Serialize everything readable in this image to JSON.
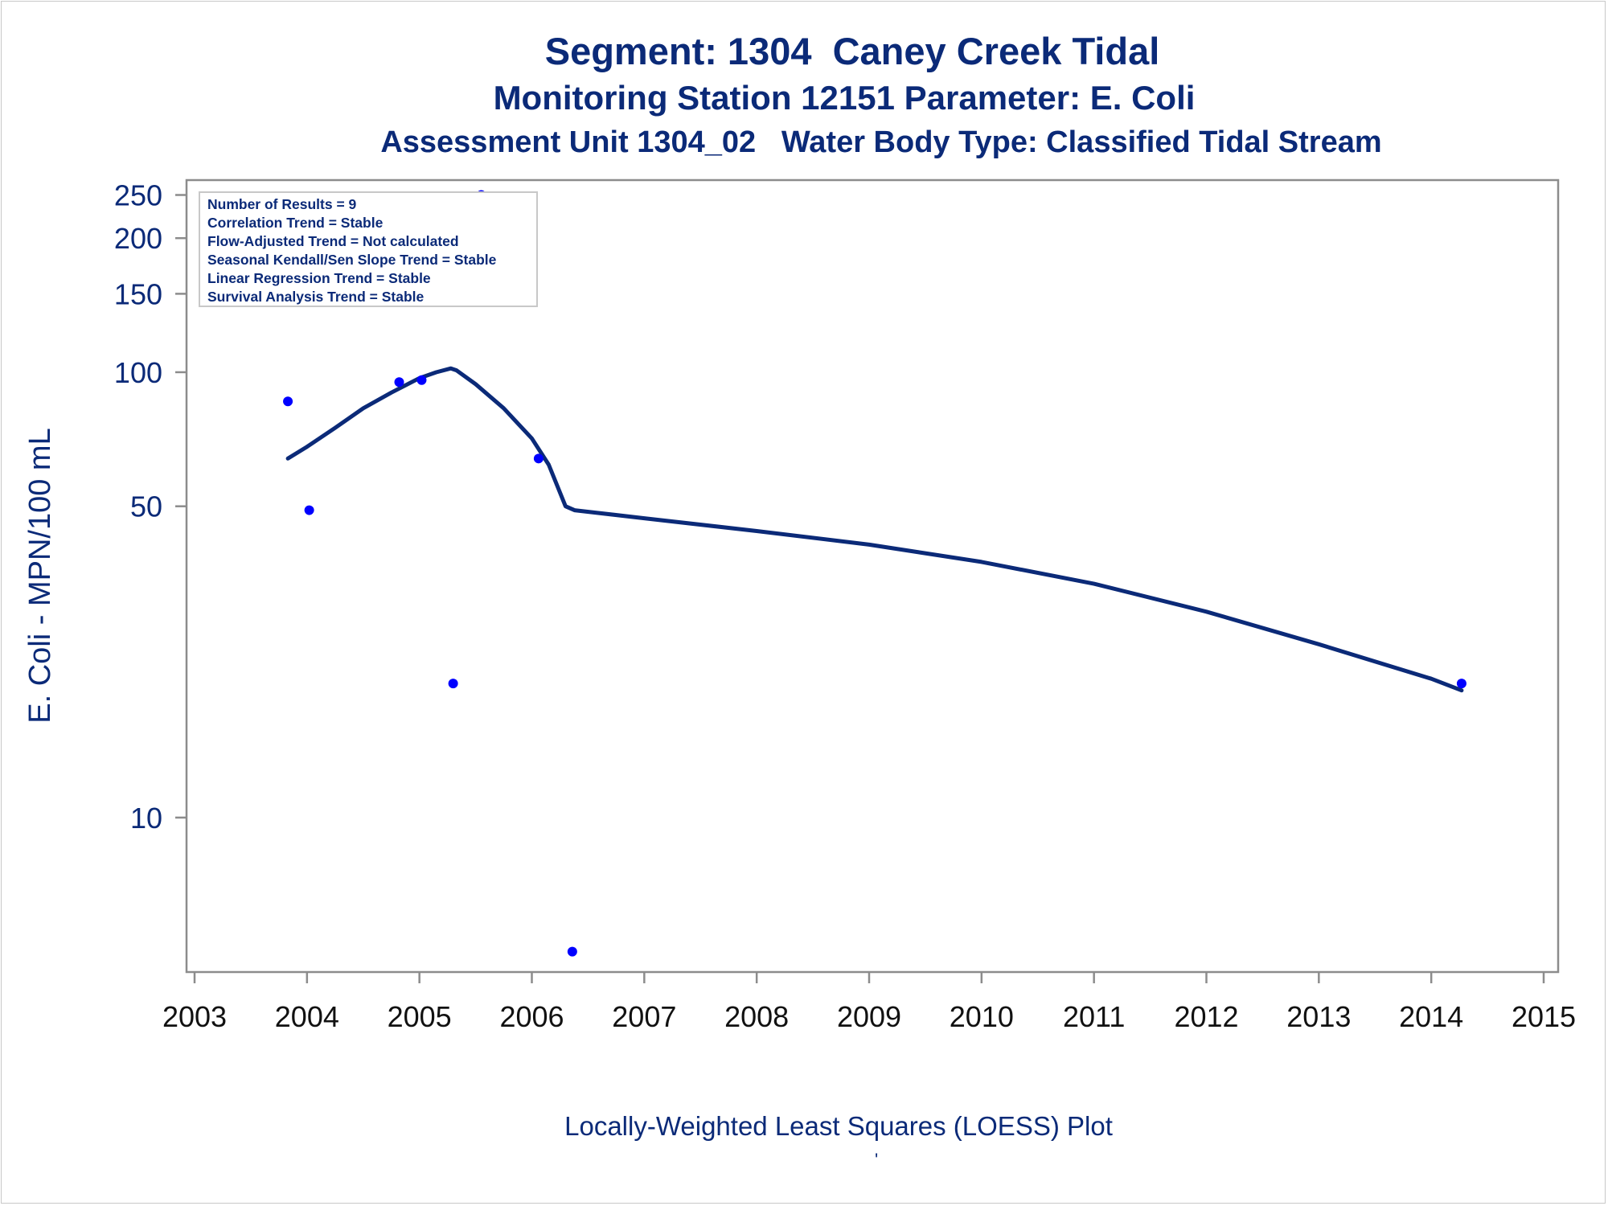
{
  "titles": {
    "line1": "Segment: 1304  Caney Creek Tidal",
    "line2": "Monitoring Station 12151 Parameter: E. Coli",
    "line3": "Assessment Unit 1304_02   Water Body Type: Classified Tidal Stream"
  },
  "footnote": "Locally-Weighted Least Squares (LOESS) Plot",
  "footnote_mark": "'",
  "colors": {
    "text": "#0b2a78",
    "line": "#0b2a78",
    "points": "#0000ff",
    "axis": "#8c8c8c"
  },
  "chart_data": {
    "type": "scatter",
    "ylabel": "E. Coli - MPN/100 mL",
    "xlabel": "",
    "yscale": "log",
    "xlim": [
      2003,
      2015
    ],
    "ylim": [
      4.5,
      270
    ],
    "x_ticks": [
      2003,
      2004,
      2005,
      2006,
      2007,
      2008,
      2009,
      2010,
      2011,
      2012,
      2013,
      2014,
      2015
    ],
    "y_ticks": [
      10,
      50,
      100,
      150,
      200,
      250
    ],
    "grid": false,
    "stats_box": [
      "Number of Results = 9",
      "Correlation Trend = Stable",
      "Flow-Adjusted Trend = Not calculated",
      "Seasonal Kendall/Sen Slope Trend = Stable",
      "Linear Regression Trend = Stable",
      "Survival Analysis Trend = Stable"
    ],
    "series": [
      {
        "type": "scatter",
        "points": [
          {
            "x": 2003.83,
            "y": 86
          },
          {
            "x": 2004.02,
            "y": 49
          },
          {
            "x": 2004.82,
            "y": 95
          },
          {
            "x": 2005.02,
            "y": 96
          },
          {
            "x": 2005.3,
            "y": 20
          },
          {
            "x": 2005.55,
            "y": 250
          },
          {
            "x": 2006.06,
            "y": 64
          },
          {
            "x": 2006.36,
            "y": 5
          },
          {
            "x": 2014.27,
            "y": 20
          }
        ]
      },
      {
        "type": "line",
        "points": [
          {
            "x": 2003.83,
            "y": 64
          },
          {
            "x": 2004.0,
            "y": 68
          },
          {
            "x": 2004.25,
            "y": 75
          },
          {
            "x": 2004.5,
            "y": 83
          },
          {
            "x": 2004.75,
            "y": 90
          },
          {
            "x": 2005.0,
            "y": 97
          },
          {
            "x": 2005.15,
            "y": 100
          },
          {
            "x": 2005.28,
            "y": 102
          },
          {
            "x": 2005.33,
            "y": 101
          },
          {
            "x": 2005.5,
            "y": 94
          },
          {
            "x": 2005.75,
            "y": 83
          },
          {
            "x": 2006.0,
            "y": 71
          },
          {
            "x": 2006.15,
            "y": 62
          },
          {
            "x": 2006.3,
            "y": 50
          },
          {
            "x": 2006.38,
            "y": 49
          },
          {
            "x": 2007.0,
            "y": 47
          },
          {
            "x": 2008.0,
            "y": 44
          },
          {
            "x": 2009.0,
            "y": 41
          },
          {
            "x": 2010.0,
            "y": 37.5
          },
          {
            "x": 2011.0,
            "y": 33.5
          },
          {
            "x": 2012.0,
            "y": 29
          },
          {
            "x": 2013.0,
            "y": 24.5
          },
          {
            "x": 2014.0,
            "y": 20.5
          },
          {
            "x": 2014.27,
            "y": 19.3
          }
        ]
      }
    ]
  }
}
